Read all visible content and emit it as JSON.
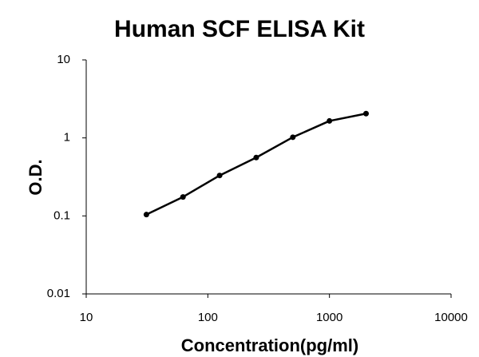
{
  "chart_data": {
    "type": "line",
    "title": "Human SCF ELISA Kit",
    "x_label": "Concentration(pg/ml)",
    "y_label": "O.D.",
    "x": [
      31.25,
      62.5,
      125,
      250,
      500,
      1000,
      2000
    ],
    "series": [
      {
        "color": "#000000",
        "values": [
          0.104,
          0.175,
          0.33,
          0.56,
          1.02,
          1.65,
          2.05
        ]
      }
    ],
    "xscale": "log",
    "yscale": "log",
    "xlim": [
      10,
      10000
    ],
    "ylim": [
      0.01,
      10
    ],
    "xticks": [
      10,
      100,
      1000,
      10000
    ],
    "yticks": [
      0.01,
      0.1,
      1,
      10
    ],
    "grid": false
  }
}
